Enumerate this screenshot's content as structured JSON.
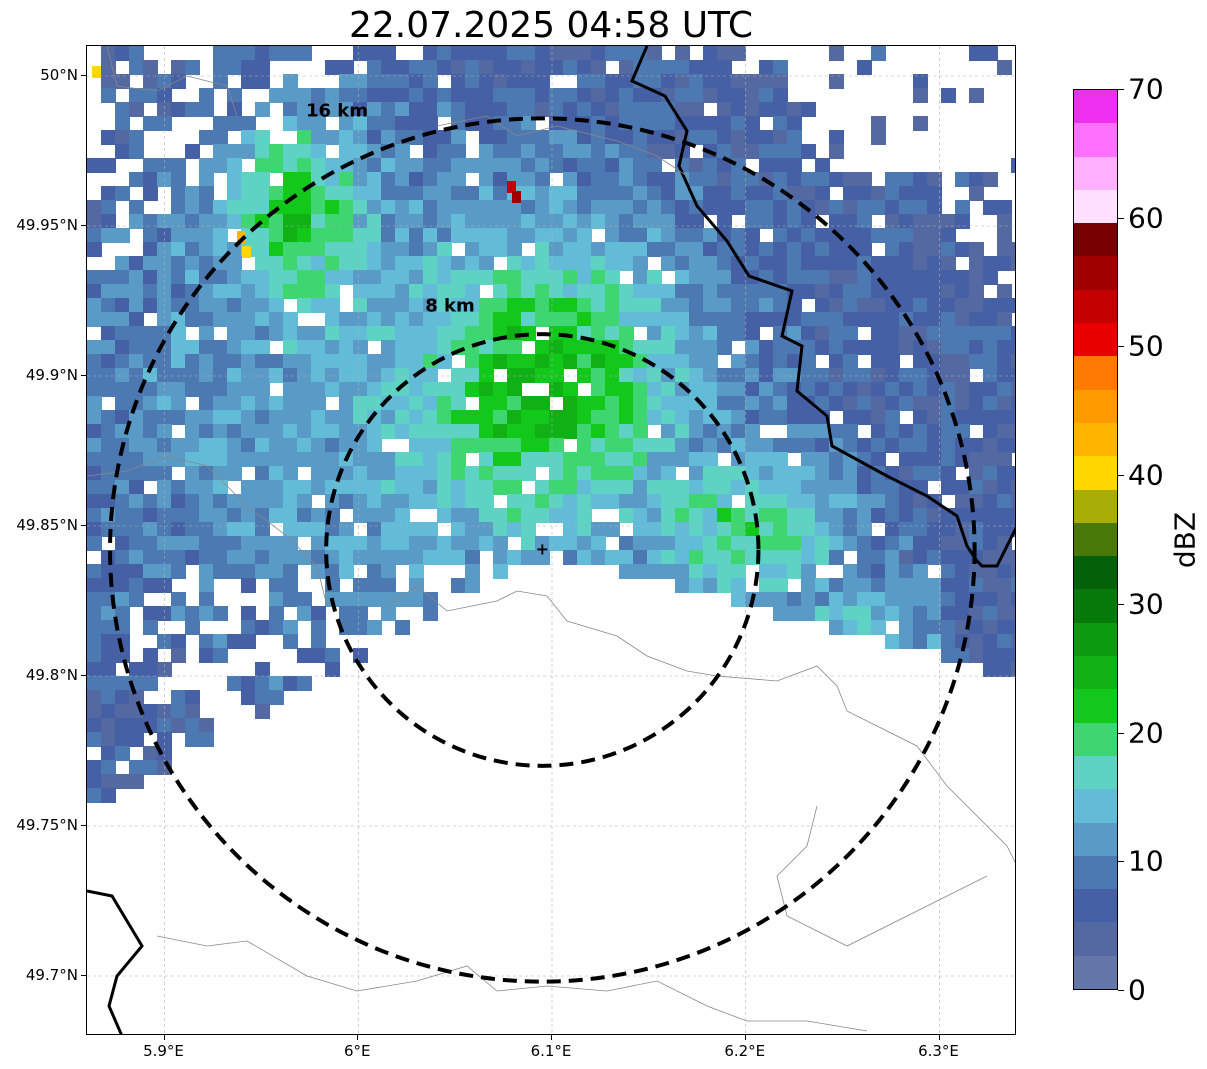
{
  "title": "22.07.2025 04:58 UTC",
  "map": {
    "extent": {
      "lon_min": 5.86,
      "lon_max": 6.34,
      "lat_min": 49.68,
      "lat_max": 50.01
    },
    "radar_center": {
      "lon": 6.095,
      "lat": 49.842
    },
    "rings": [
      {
        "label": "16 km",
        "radius_km": 16
      },
      {
        "label": "8 km",
        "radius_km": 8
      }
    ],
    "x_ticks": [
      {
        "value": 5.9,
        "label": "5.9°E"
      },
      {
        "value": 6.0,
        "label": "6°E"
      },
      {
        "value": 6.1,
        "label": "6.1°E"
      },
      {
        "value": 6.2,
        "label": "6.2°E"
      },
      {
        "value": 6.3,
        "label": "6.3°E"
      }
    ],
    "y_ticks": [
      {
        "value": 50.0,
        "label": "50°N"
      },
      {
        "value": 49.95,
        "label": "49.95°N"
      },
      {
        "value": 49.9,
        "label": "49.9°N"
      },
      {
        "value": 49.85,
        "label": "49.85°N"
      },
      {
        "value": 49.8,
        "label": "49.8°N"
      },
      {
        "value": 49.75,
        "label": "49.75°N"
      },
      {
        "value": 49.7,
        "label": "49.7°N"
      }
    ],
    "gridlines": true
  },
  "colorbar": {
    "label": "dBZ",
    "min": 0,
    "max": 70,
    "ticks": [
      "0",
      "10",
      "20",
      "30",
      "40",
      "50",
      "60",
      "70"
    ],
    "tick_values": [
      0,
      10,
      20,
      30,
      40,
      50,
      60,
      70
    ],
    "colors": [
      "#6577a8",
      "#5468a2",
      "#4660a6",
      "#4c79b2",
      "#5a9ac6",
      "#62bcd8",
      "#5ed3c4",
      "#3ed670",
      "#12c81a",
      "#0fb114",
      "#0b9a10",
      "#087a0c",
      "#05600a",
      "#487808",
      "#a8ae06",
      "#ffd700",
      "#ffb400",
      "#ff9a00",
      "#ff7a00",
      "#e80000",
      "#c40000",
      "#a00000",
      "#780000",
      "#ffe0ff",
      "#ffb0ff",
      "#ff70ff",
      "#f030f0"
    ]
  }
}
